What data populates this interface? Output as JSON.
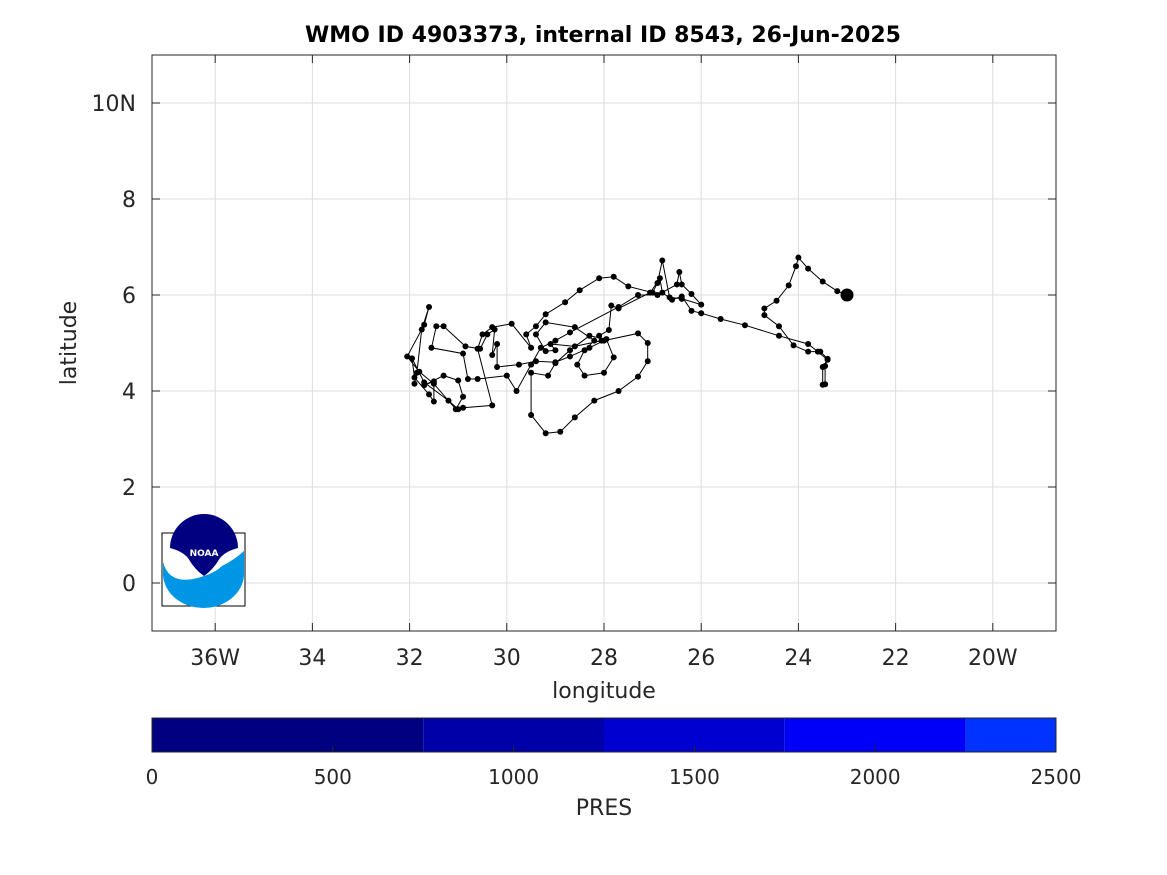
{
  "chart_data": {
    "type": "scatter",
    "title": "WMO ID 4903373, internal ID 8543, 26-Jun-2025",
    "xlabel": "longitude",
    "ylabel": "latitude",
    "xlim": [
      -37.3,
      -18.7
    ],
    "ylim": [
      -1,
      11
    ],
    "x_ticks": [
      {
        "value": -36,
        "label": "36W"
      },
      {
        "value": -34,
        "label": "34"
      },
      {
        "value": -32,
        "label": "32"
      },
      {
        "value": -30,
        "label": "30"
      },
      {
        "value": -28,
        "label": "28"
      },
      {
        "value": -26,
        "label": "26"
      },
      {
        "value": -24,
        "label": "24"
      },
      {
        "value": -22,
        "label": "22"
      },
      {
        "value": -20,
        "label": "20W"
      }
    ],
    "y_ticks": [
      {
        "value": 0,
        "label": "0"
      },
      {
        "value": 2,
        "label": "2"
      },
      {
        "value": 4,
        "label": "4"
      },
      {
        "value": 6,
        "label": "6"
      },
      {
        "value": 8,
        "label": "8"
      },
      {
        "value": 10,
        "label": "10N"
      }
    ],
    "grid": true,
    "latest_position": {
      "lon": -23.0,
      "lat": 6.0
    },
    "track": [
      [
        -23.0,
        6.0
      ],
      [
        -23.2,
        6.08
      ],
      [
        -23.5,
        6.28
      ],
      [
        -23.8,
        6.55
      ],
      [
        -24.0,
        6.78
      ],
      [
        -24.05,
        6.6
      ],
      [
        -24.2,
        6.2
      ],
      [
        -24.45,
        5.88
      ],
      [
        -24.7,
        5.72
      ],
      [
        -24.7,
        5.58
      ],
      [
        -24.4,
        5.35
      ],
      [
        -24.1,
        4.95
      ],
      [
        -23.8,
        4.82
      ],
      [
        -23.55,
        4.82
      ],
      [
        -23.4,
        4.67
      ],
      [
        -23.45,
        4.52
      ],
      [
        -23.45,
        4.14
      ],
      [
        -23.5,
        4.13
      ],
      [
        -23.5,
        4.5
      ],
      [
        -23.4,
        4.65
      ],
      [
        -23.6,
        4.82
      ],
      [
        -23.8,
        4.98
      ],
      [
        -24.4,
        5.15
      ],
      [
        -25.1,
        5.37
      ],
      [
        -25.6,
        5.5
      ],
      [
        -26.0,
        5.62
      ],
      [
        -26.2,
        5.67
      ],
      [
        -26.4,
        5.97
      ],
      [
        -26.6,
        5.9
      ],
      [
        -26.8,
        6.05
      ],
      [
        -26.85,
        6.35
      ],
      [
        -27.05,
        6.05
      ],
      [
        -27.7,
        5.72
      ],
      [
        -27.85,
        5.78
      ],
      [
        -27.9,
        5.27
      ],
      [
        -28.1,
        5.15
      ],
      [
        -28.05,
        5.05
      ],
      [
        -28.6,
        4.93
      ],
      [
        -29.1,
        4.98
      ],
      [
        -29.0,
        4.85
      ],
      [
        -29.2,
        4.83
      ],
      [
        -29.4,
        5.18
      ],
      [
        -29.2,
        5.43
      ],
      [
        -28.6,
        5.33
      ],
      [
        -28.2,
        5.05
      ],
      [
        -28.4,
        4.85
      ],
      [
        -28.55,
        4.55
      ],
      [
        -28.4,
        4.32
      ],
      [
        -28.0,
        4.38
      ],
      [
        -27.8,
        4.7
      ],
      [
        -27.95,
        5.08
      ],
      [
        -28.3,
        5.15
      ],
      [
        -28.7,
        4.85
      ],
      [
        -29.0,
        4.58
      ],
      [
        -29.15,
        4.32
      ],
      [
        -29.5,
        4.38
      ],
      [
        -29.5,
        3.5
      ],
      [
        -29.2,
        3.12
      ],
      [
        -28.9,
        3.15
      ],
      [
        -28.6,
        3.45
      ],
      [
        -28.2,
        3.8
      ],
      [
        -27.7,
        4.0
      ],
      [
        -27.3,
        4.3
      ],
      [
        -27.1,
        4.62
      ],
      [
        -27.1,
        5.0
      ],
      [
        -27.3,
        5.2
      ],
      [
        -28.0,
        5.05
      ],
      [
        -28.3,
        4.9
      ],
      [
        -28.7,
        4.72
      ],
      [
        -29.0,
        4.6
      ],
      [
        -29.4,
        4.62
      ],
      [
        -29.75,
        4.55
      ],
      [
        -30.2,
        4.5
      ],
      [
        -30.2,
        4.98
      ],
      [
        -30.3,
        4.75
      ],
      [
        -30.25,
        5.28
      ],
      [
        -30.4,
        5.18
      ],
      [
        -30.55,
        4.88
      ],
      [
        -30.85,
        4.93
      ],
      [
        -31.3,
        5.35
      ],
      [
        -31.45,
        5.35
      ],
      [
        -31.55,
        4.9
      ],
      [
        -30.9,
        4.78
      ],
      [
        -30.8,
        4.25
      ],
      [
        -30.6,
        4.25
      ],
      [
        -30.0,
        4.32
      ],
      [
        -29.8,
        4.0
      ],
      [
        -29.5,
        4.55
      ],
      [
        -29.3,
        4.9
      ],
      [
        -29.0,
        5.05
      ],
      [
        -28.7,
        5.22
      ],
      [
        -27.7,
        5.75
      ],
      [
        -27.3,
        6.0
      ],
      [
        -26.9,
        6.0
      ],
      [
        -26.5,
        6.22
      ],
      [
        -26.45,
        6.48
      ],
      [
        -26.4,
        6.22
      ],
      [
        -26.2,
        6.02
      ],
      [
        -26.0,
        5.8
      ],
      [
        -26.4,
        5.92
      ],
      [
        -26.65,
        5.95
      ],
      [
        -26.8,
        6.72
      ],
      [
        -26.9,
        6.25
      ],
      [
        -27.0,
        6.05
      ],
      [
        -27.5,
        6.18
      ],
      [
        -27.8,
        6.38
      ],
      [
        -28.1,
        6.35
      ],
      [
        -28.5,
        6.1
      ],
      [
        -28.8,
        5.85
      ],
      [
        -29.2,
        5.6
      ],
      [
        -29.4,
        5.35
      ],
      [
        -29.6,
        5.18
      ],
      [
        -29.5,
        4.9
      ],
      [
        -29.9,
        5.4
      ],
      [
        -30.3,
        5.33
      ],
      [
        -30.5,
        5.18
      ],
      [
        -30.6,
        4.88
      ],
      [
        -30.3,
        3.7
      ],
      [
        -30.9,
        3.65
      ],
      [
        -31.0,
        3.62
      ],
      [
        -31.2,
        3.8
      ],
      [
        -31.7,
        4.18
      ],
      [
        -31.95,
        4.68
      ],
      [
        -31.9,
        4.28
      ],
      [
        -31.6,
        3.93
      ],
      [
        -31.5,
        3.78
      ],
      [
        -31.5,
        4.2
      ],
      [
        -31.7,
        4.12
      ],
      [
        -31.3,
        4.32
      ],
      [
        -31.0,
        4.22
      ],
      [
        -30.9,
        3.88
      ],
      [
        -31.05,
        3.62
      ],
      [
        -31.5,
        4.15
      ],
      [
        -31.8,
        4.4
      ],
      [
        -32.05,
        4.72
      ],
      [
        -31.7,
        5.38
      ],
      [
        -31.6,
        5.75
      ],
      [
        -31.75,
        5.28
      ],
      [
        -31.85,
        4.38
      ],
      [
        -31.9,
        4.15
      ]
    ]
  },
  "colorbar": {
    "label": "PRES",
    "ticks": [
      "0",
      "500",
      "1000",
      "1500",
      "2000",
      "2500"
    ],
    "min": 0,
    "max": 2500,
    "segments": [
      {
        "from": 0,
        "to": 750,
        "color": "#000080"
      },
      {
        "from": 750,
        "to": 1250,
        "color": "#0000A8"
      },
      {
        "from": 1250,
        "to": 1750,
        "color": "#0000D0"
      },
      {
        "from": 1750,
        "to": 2250,
        "color": "#0000F8"
      },
      {
        "from": 2250,
        "to": 2500,
        "color": "#0033FF"
      }
    ]
  },
  "logo": {
    "text": "NOAA",
    "dark_color": "#000080",
    "light_color": "#0096E6"
  }
}
